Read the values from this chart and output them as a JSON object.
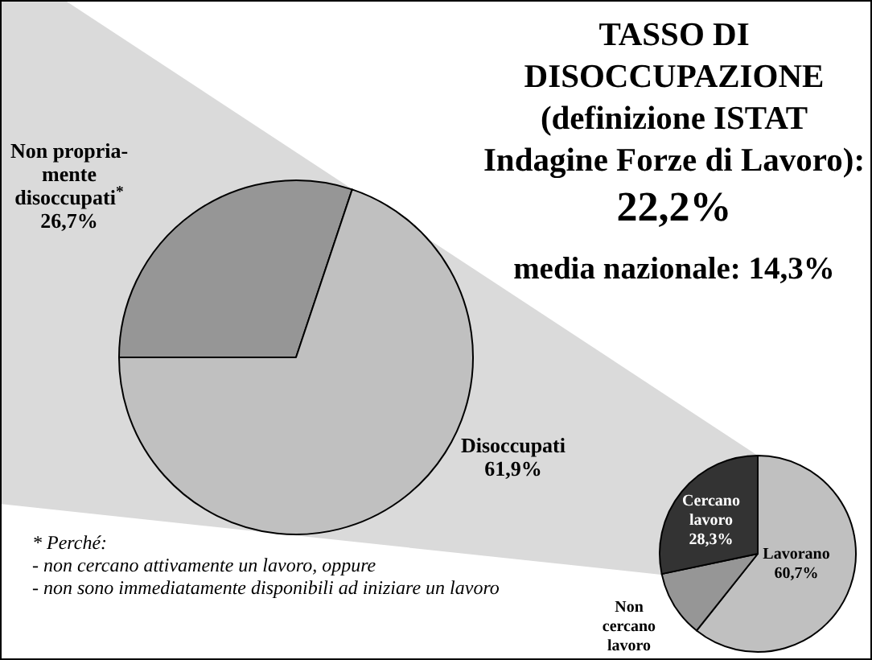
{
  "chart_data": [
    {
      "type": "pie",
      "title": "TASSO DI DISOCCUPAZIONE (definizione ISTAT Indagine Forze di Lavoro):",
      "subtitle": "22,2%",
      "categories": [
        "Non propria-mente disoccupati$^{*}$",
        "Disoccupati"
      ],
      "values": [
        26.7,
        61.9
      ],
      "colors": [
        "#969696",
        "#c0c0c0"
      ],
      "value_labels": [
        "26,7%",
        "61,9%"
      ],
      "annotations": [
        "media nazionale: 14,3%",
        "* Perché:",
        "- non cercano attivamente un lavoro, oppure",
        "- non sono immediatamente disponibili ad iniziare un lavoro"
      ]
    },
    {
      "type": "pie",
      "categories": [
        "Lavorano",
        "Non cercano lavoro",
        "Cercano lavoro"
      ],
      "values": [
        60.7,
        11,
        28.3
      ],
      "colors": [
        "#c0c0c0",
        "#969696",
        "#333333"
      ],
      "value_labels": [
        "60,7%",
        null,
        "28,3%"
      ]
    }
  ]
}
